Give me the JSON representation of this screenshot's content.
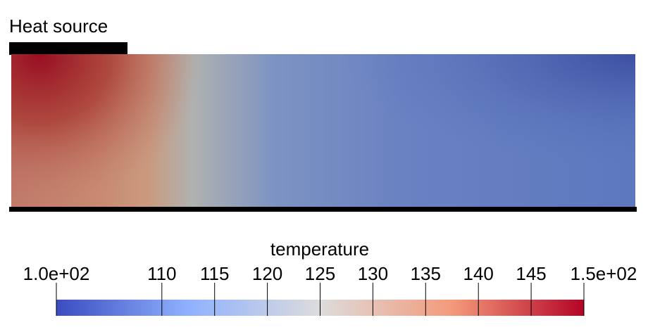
{
  "heat_source": {
    "label": "Heat source"
  },
  "colorbar": {
    "title": "temperature",
    "min": 100,
    "max": 150,
    "min_label": "1.0e+02",
    "max_label": "1.5e+02",
    "ticks": [
      {
        "value": 110,
        "label": "110"
      },
      {
        "value": 115,
        "label": "115"
      },
      {
        "value": 120,
        "label": "120"
      },
      {
        "value": 125,
        "label": "125"
      },
      {
        "value": 130,
        "label": "130"
      },
      {
        "value": 135,
        "label": "135"
      },
      {
        "value": 140,
        "label": "140"
      },
      {
        "value": 145,
        "label": "145"
      }
    ],
    "colormap": [
      "#3b4cc0",
      "#8fb1fe",
      "#dddcdc",
      "#f49a7b",
      "#b40426"
    ]
  },
  "field_colors": {
    "hot": "#980d22",
    "warm": "#c99a7f",
    "mid": "#b0b2b0",
    "cool": "#6f89c4",
    "cold": "#3b4da0"
  }
}
